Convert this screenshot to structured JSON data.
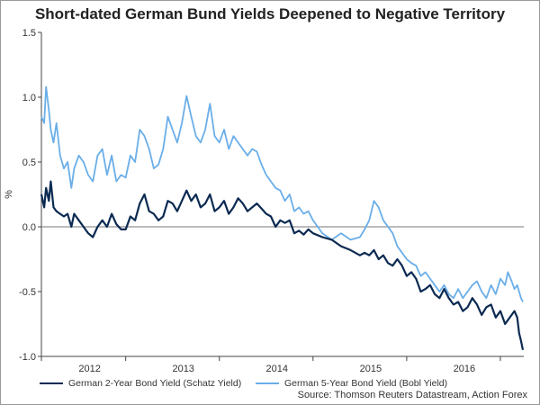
{
  "chart_data": {
    "type": "line",
    "title": "Short-dated German Bund Yields Deepened to Negative Territory",
    "ylabel": "%",
    "xlabel": "",
    "ylim": [
      -1.0,
      1.5
    ],
    "yticks": [
      -1.0,
      -0.5,
      0.0,
      0.5,
      1.0,
      1.5
    ],
    "ytick_labels": [
      "-1.0",
      "-0.5",
      "0.0",
      "0.5",
      "1.0",
      "1.5"
    ],
    "xlim": [
      2011.6,
      2016.75
    ],
    "xtick_labels": [
      {
        "label": "2012",
        "x": 2012.0
      },
      {
        "label": "2013",
        "x": 2013.0
      },
      {
        "label": "2014",
        "x": 2014.0
      },
      {
        "label": "2015",
        "x": 2015.0
      },
      {
        "label": "2016",
        "x": 2016.0
      }
    ],
    "year_boundaries": [
      2011.6,
      2012.5,
      2013.5,
      2014.5,
      2015.5,
      2016.5
    ],
    "zero_line": 0.0,
    "source": "Source: Thomson Reuters Datastream, Action Forex",
    "series": [
      {
        "name": "German 2-Year Bond Yield (Schatz Yield)",
        "color": "#0b2a52",
        "x": [
          2011.6,
          2011.63,
          2011.65,
          2011.68,
          2011.7,
          2011.73,
          2011.76,
          2011.8,
          2011.84,
          2011.88,
          2011.92,
          2011.95,
          2012.0,
          2012.05,
          2012.1,
          2012.15,
          2012.2,
          2012.25,
          2012.3,
          2012.35,
          2012.4,
          2012.45,
          2012.5,
          2012.55,
          2012.6,
          2012.65,
          2012.7,
          2012.75,
          2012.8,
          2012.85,
          2012.9,
          2012.95,
          2013.0,
          2013.05,
          2013.1,
          2013.15,
          2013.2,
          2013.25,
          2013.3,
          2013.35,
          2013.4,
          2013.45,
          2013.5,
          2013.55,
          2013.6,
          2013.65,
          2013.7,
          2013.75,
          2013.8,
          2013.85,
          2013.9,
          2013.95,
          2014.0,
          2014.05,
          2014.1,
          2014.15,
          2014.2,
          2014.25,
          2014.3,
          2014.35,
          2014.4,
          2014.45,
          2014.5,
          2014.6,
          2014.7,
          2014.8,
          2014.9,
          2015.0,
          2015.05,
          2015.1,
          2015.15,
          2015.2,
          2015.25,
          2015.3,
          2015.35,
          2015.4,
          2015.45,
          2015.5,
          2015.55,
          2015.6,
          2015.65,
          2015.7,
          2015.75,
          2015.8,
          2015.85,
          2015.9,
          2015.95,
          2016.0,
          2016.05,
          2016.1,
          2016.15,
          2016.2,
          2016.25,
          2016.3,
          2016.35,
          2016.4,
          2016.45,
          2016.5,
          2016.55,
          2016.58,
          2016.62,
          2016.65,
          2016.68,
          2016.7,
          2016.72,
          2016.74
        ],
        "values": [
          0.25,
          0.15,
          0.3,
          0.2,
          0.35,
          0.15,
          0.12,
          0.1,
          0.08,
          0.1,
          0.0,
          0.1,
          0.05,
          0.0,
          -0.05,
          -0.08,
          0.0,
          0.05,
          0.0,
          0.1,
          0.02,
          -0.02,
          -0.02,
          0.08,
          0.05,
          0.18,
          0.25,
          0.12,
          0.1,
          0.05,
          0.08,
          0.2,
          0.18,
          0.12,
          0.2,
          0.28,
          0.2,
          0.25,
          0.15,
          0.18,
          0.25,
          0.12,
          0.15,
          0.2,
          0.1,
          0.15,
          0.22,
          0.18,
          0.12,
          0.15,
          0.18,
          0.14,
          0.1,
          0.08,
          0.0,
          0.05,
          0.03,
          0.05,
          -0.05,
          -0.03,
          -0.06,
          -0.02,
          -0.05,
          -0.08,
          -0.1,
          -0.15,
          -0.18,
          -0.22,
          -0.2,
          -0.22,
          -0.18,
          -0.25,
          -0.22,
          -0.28,
          -0.3,
          -0.25,
          -0.3,
          -0.38,
          -0.35,
          -0.4,
          -0.5,
          -0.48,
          -0.45,
          -0.52,
          -0.55,
          -0.48,
          -0.55,
          -0.6,
          -0.58,
          -0.65,
          -0.62,
          -0.55,
          -0.6,
          -0.68,
          -0.62,
          -0.6,
          -0.7,
          -0.65,
          -0.75,
          -0.72,
          -0.68,
          -0.65,
          -0.7,
          -0.82,
          -0.88,
          -0.95
        ]
      },
      {
        "name": "German 5-Year Bond Yield (Bobl Yield)",
        "color": "#6aaee8",
        "x": [
          2011.6,
          2011.63,
          2011.65,
          2011.68,
          2011.7,
          2011.73,
          2011.76,
          2011.8,
          2011.84,
          2011.88,
          2011.92,
          2011.95,
          2012.0,
          2012.05,
          2012.1,
          2012.15,
          2012.2,
          2012.25,
          2012.3,
          2012.35,
          2012.4,
          2012.45,
          2012.5,
          2012.55,
          2012.6,
          2012.65,
          2012.7,
          2012.75,
          2012.8,
          2012.85,
          2012.9,
          2012.95,
          2013.0,
          2013.05,
          2013.1,
          2013.15,
          2013.2,
          2013.25,
          2013.3,
          2013.35,
          2013.4,
          2013.45,
          2013.5,
          2013.55,
          2013.6,
          2013.65,
          2013.7,
          2013.75,
          2013.8,
          2013.85,
          2013.9,
          2013.95,
          2014.0,
          2014.05,
          2014.1,
          2014.15,
          2014.2,
          2014.25,
          2014.3,
          2014.35,
          2014.4,
          2014.45,
          2014.5,
          2014.6,
          2014.7,
          2014.8,
          2014.9,
          2015.0,
          2015.05,
          2015.1,
          2015.15,
          2015.2,
          2015.25,
          2015.3,
          2015.35,
          2015.4,
          2015.45,
          2015.5,
          2015.55,
          2015.6,
          2015.65,
          2015.7,
          2015.75,
          2015.8,
          2015.85,
          2015.9,
          2015.95,
          2016.0,
          2016.05,
          2016.1,
          2016.15,
          2016.2,
          2016.25,
          2016.3,
          2016.35,
          2016.4,
          2016.45,
          2016.5,
          2016.55,
          2016.58,
          2016.62,
          2016.65,
          2016.68,
          2016.7,
          2016.72,
          2016.74
        ],
        "values": [
          0.85,
          0.8,
          1.08,
          0.9,
          0.75,
          0.65,
          0.8,
          0.55,
          0.45,
          0.5,
          0.3,
          0.45,
          0.55,
          0.5,
          0.4,
          0.35,
          0.55,
          0.6,
          0.4,
          0.55,
          0.35,
          0.4,
          0.38,
          0.55,
          0.5,
          0.75,
          0.7,
          0.6,
          0.45,
          0.48,
          0.6,
          0.85,
          0.75,
          0.65,
          0.8,
          1.01,
          0.85,
          0.7,
          0.65,
          0.75,
          0.95,
          0.7,
          0.65,
          0.75,
          0.6,
          0.7,
          0.65,
          0.6,
          0.55,
          0.6,
          0.58,
          0.48,
          0.4,
          0.35,
          0.3,
          0.28,
          0.2,
          0.25,
          0.12,
          0.15,
          0.1,
          0.12,
          0.05,
          -0.05,
          -0.1,
          -0.05,
          -0.1,
          -0.08,
          -0.02,
          0.05,
          0.2,
          0.15,
          0.05,
          0.0,
          -0.05,
          -0.15,
          -0.2,
          -0.25,
          -0.28,
          -0.3,
          -0.38,
          -0.35,
          -0.4,
          -0.45,
          -0.5,
          -0.45,
          -0.52,
          -0.55,
          -0.48,
          -0.55,
          -0.5,
          -0.45,
          -0.42,
          -0.5,
          -0.55,
          -0.45,
          -0.52,
          -0.4,
          -0.45,
          -0.35,
          -0.42,
          -0.48,
          -0.45,
          -0.5,
          -0.55,
          -0.58
        ]
      }
    ]
  }
}
